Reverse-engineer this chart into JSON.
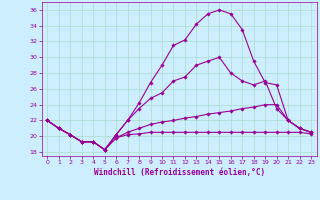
{
  "xlabel": "Windchill (Refroidissement éolien,°C)",
  "bg_color": "#cceeff",
  "grid_color": "#aaddcc",
  "line_color": "#990099",
  "xlim": [
    -0.5,
    23.5
  ],
  "ylim": [
    17.5,
    37.0
  ],
  "yticks": [
    18,
    20,
    22,
    24,
    26,
    28,
    30,
    32,
    34,
    36
  ],
  "xticks": [
    0,
    1,
    2,
    3,
    4,
    5,
    6,
    7,
    8,
    9,
    10,
    11,
    12,
    13,
    14,
    15,
    16,
    17,
    18,
    19,
    20,
    21,
    22,
    23
  ],
  "series": [
    {
      "x": [
        0,
        1,
        2,
        3,
        4,
        5,
        6,
        7,
        8,
        9,
        10,
        11,
        12,
        13,
        14,
        15,
        16,
        17,
        18,
        19,
        20,
        21,
        22,
        23
      ],
      "y": [
        22,
        21,
        20.2,
        19.3,
        19.3,
        18.3,
        20.2,
        22.0,
        24.2,
        26.8,
        29.0,
        31.5,
        32.2,
        34.2,
        35.5,
        36.0,
        35.5,
        33.5,
        29.5,
        26.8,
        26.5,
        22.0,
        21.0,
        20.5
      ]
    },
    {
      "x": [
        0,
        1,
        2,
        3,
        4,
        5,
        6,
        7,
        8,
        9,
        10,
        11,
        12,
        13,
        14,
        15,
        16,
        17,
        18,
        19,
        20,
        21,
        22,
        23
      ],
      "y": [
        22,
        21,
        20.2,
        19.3,
        19.3,
        18.3,
        20.2,
        22.0,
        23.5,
        24.8,
        25.5,
        27.0,
        27.5,
        29.0,
        29.5,
        30.0,
        28.0,
        27.0,
        26.5,
        27.0,
        23.5,
        22.0,
        21.0,
        20.5
      ]
    },
    {
      "x": [
        0,
        1,
        2,
        3,
        4,
        5,
        6,
        7,
        8,
        9,
        10,
        11,
        12,
        13,
        14,
        15,
        16,
        17,
        18,
        19,
        20,
        21,
        22,
        23
      ],
      "y": [
        22,
        21,
        20.2,
        19.3,
        19.3,
        18.3,
        19.8,
        20.5,
        21.0,
        21.5,
        21.8,
        22.0,
        22.3,
        22.5,
        22.8,
        23.0,
        23.2,
        23.5,
        23.7,
        24.0,
        24.0,
        22.0,
        21.0,
        20.5
      ]
    },
    {
      "x": [
        0,
        1,
        2,
        3,
        4,
        5,
        6,
        7,
        8,
        9,
        10,
        11,
        12,
        13,
        14,
        15,
        16,
        17,
        18,
        19,
        20,
        21,
        22,
        23
      ],
      "y": [
        22,
        21,
        20.2,
        19.3,
        19.3,
        18.3,
        19.8,
        20.2,
        20.3,
        20.5,
        20.5,
        20.5,
        20.5,
        20.5,
        20.5,
        20.5,
        20.5,
        20.5,
        20.5,
        20.5,
        20.5,
        20.5,
        20.5,
        20.3
      ]
    }
  ]
}
